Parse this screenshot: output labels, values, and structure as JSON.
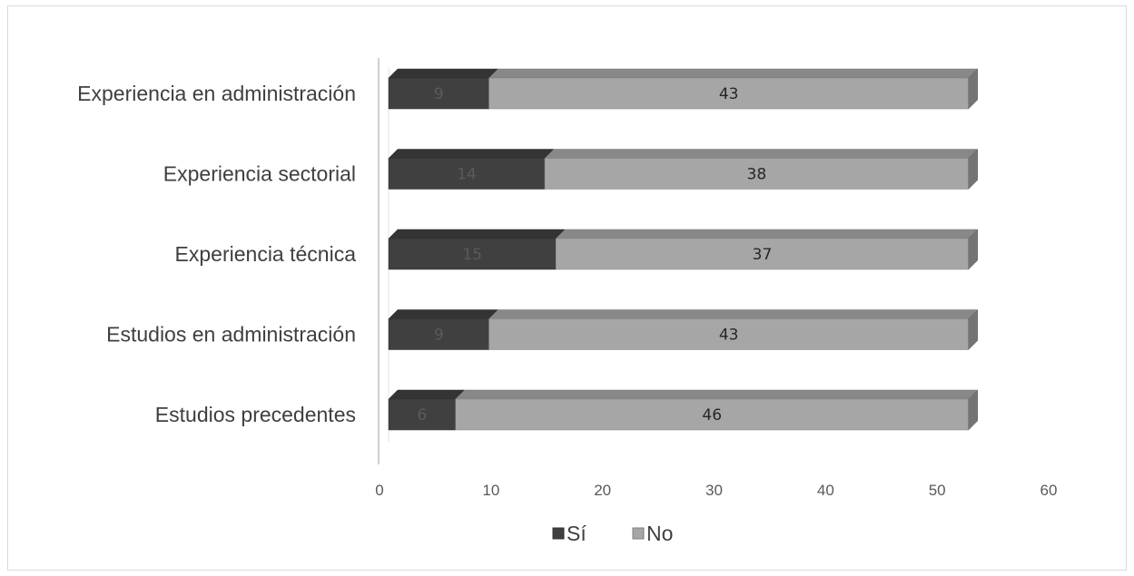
{
  "chart_data": {
    "type": "bar",
    "orientation": "horizontal",
    "stacked": true,
    "style": "3d",
    "categories": [
      "Experiencia en administración",
      "Experiencia sectorial",
      "Experiencia técnica",
      "Estudios en administración",
      "Estudios precedentes"
    ],
    "series": [
      {
        "name": "Sí",
        "values": [
          9,
          14,
          15,
          9,
          6
        ],
        "color": "#404040",
        "label_color": "#5a5a5a"
      },
      {
        "name": "No",
        "values": [
          43,
          38,
          37,
          43,
          46
        ],
        "color": "#a6a6a6",
        "label_color": "#262626"
      }
    ],
    "xlim": [
      0,
      60
    ],
    "xticks": [
      0,
      10,
      20,
      30,
      40,
      50,
      60
    ],
    "grid": false,
    "legend_position": "bottom"
  }
}
